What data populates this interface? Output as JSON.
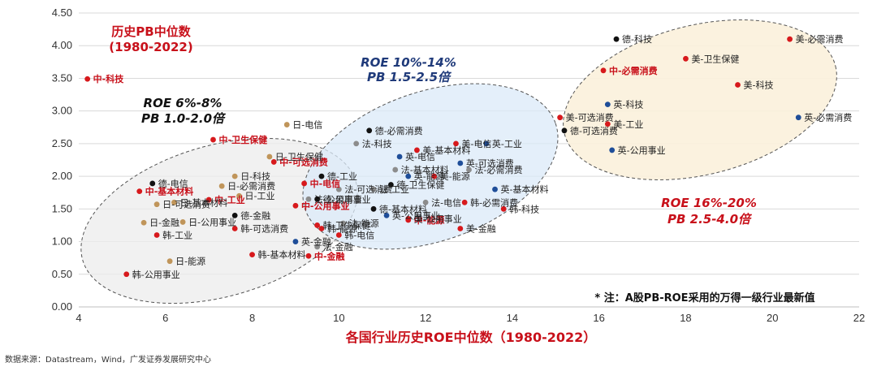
{
  "chart_data": {
    "type": "scatter",
    "title": "",
    "xlabel": "各国行业历史ROE中位数（1980-2022）",
    "ylabel": "",
    "xlim": [
      4,
      22
    ],
    "ylim": [
      0,
      4.5
    ],
    "x_ticks": [
      "4",
      "6",
      "8",
      "10",
      "12",
      "14",
      "16",
      "18",
      "20",
      "22"
    ],
    "y_ticks": [
      "0.00",
      "0.50",
      "1.00",
      "1.50",
      "2.00",
      "2.50",
      "3.00",
      "3.50",
      "4.00",
      "4.50"
    ],
    "grid": true,
    "annotations": {
      "hist_pb_line1": "历史PB中位数",
      "hist_pb_line2": "(1980-2022)",
      "roe_low_line1": "ROE  6%-8%",
      "roe_low_line2": "PB  1.0-2.0倍",
      "roe_mid_line1": "ROE  10%-14%",
      "roe_mid_line2": "PB  1.5-2.5倍",
      "roe_high_line1": "ROE  16%-20%",
      "roe_high_line2": "PB  2.5-4.0倍",
      "note": "* 注：A股PB-ROE采用的万得一级行业最新值"
    },
    "colors": {
      "china": "#d7191c",
      "us": "#d7191c",
      "uk": "#1f4e99",
      "germany": "#111111",
      "france": "#8c8c8c",
      "japan": "#c0955a",
      "korea": "#d7191c",
      "label_highlight": "#c8101a",
      "annotation_dark_blue": "#1f3a7a",
      "annotation_red": "#c8101a"
    },
    "points": [
      {
        "label": "中-科技",
        "x": 4.2,
        "y": 3.49,
        "color": "#d7191c",
        "highlight": true
      },
      {
        "label": "中-卫生保健",
        "x": 7.1,
        "y": 2.56,
        "color": "#d7191c",
        "highlight": true
      },
      {
        "label": "中-可选消费",
        "x": 8.5,
        "y": 2.22,
        "color": "#d7191c",
        "highlight": true
      },
      {
        "label": "中-电信",
        "x": 9.2,
        "y": 1.89,
        "color": "#d7191c",
        "highlight": true
      },
      {
        "label": "中-基本材料",
        "x": 5.4,
        "y": 1.77,
        "color": "#d7191c",
        "highlight": true
      },
      {
        "label": "中-工业",
        "x": 7.0,
        "y": 1.64,
        "color": "#d7191c",
        "highlight": true
      },
      {
        "label": "中-公用事业",
        "x": 9.0,
        "y": 1.55,
        "color": "#d7191c",
        "highlight": true
      },
      {
        "label": "中-能源",
        "x": 11.6,
        "y": 1.33,
        "color": "#d7191c",
        "highlight": true
      },
      {
        "label": "中-金融",
        "x": 9.3,
        "y": 0.78,
        "color": "#d7191c",
        "highlight": true
      },
      {
        "label": "中-必需消费",
        "x": 16.1,
        "y": 3.62,
        "color": "#d7191c",
        "highlight": true
      },
      {
        "label": "日-电信",
        "x": 8.8,
        "y": 2.79,
        "color": "#c0955a",
        "highlight": false
      },
      {
        "label": "日-卫生保健",
        "x": 8.4,
        "y": 2.3,
        "color": "#c0955a",
        "highlight": false
      },
      {
        "label": "日-科技",
        "x": 7.6,
        "y": 2.0,
        "color": "#c0955a",
        "highlight": false
      },
      {
        "label": "日-必需消费",
        "x": 7.3,
        "y": 1.85,
        "color": "#c0955a",
        "highlight": false
      },
      {
        "label": "日-工业",
        "x": 7.7,
        "y": 1.7,
        "color": "#c0955a",
        "highlight": false
      },
      {
        "label": "日-基本材料",
        "x": 6.2,
        "y": 1.6,
        "color": "#c0955a",
        "highlight": false
      },
      {
        "label": "日-可选消费",
        "x": 5.8,
        "y": 1.57,
        "color": "#c0955a",
        "highlight": false
      },
      {
        "label": "日-公用事业",
        "x": 6.4,
        "y": 1.3,
        "color": "#c0955a",
        "highlight": false
      },
      {
        "label": "日-金融",
        "x": 5.5,
        "y": 1.29,
        "color": "#c0955a",
        "highlight": false
      },
      {
        "label": "日-能源",
        "x": 6.1,
        "y": 0.7,
        "color": "#c0955a",
        "highlight": false
      },
      {
        "label": "德-电信",
        "x": 5.7,
        "y": 1.89,
        "color": "#111111",
        "highlight": false
      },
      {
        "label": "德-金融",
        "x": 7.6,
        "y": 1.4,
        "color": "#111111",
        "highlight": false
      },
      {
        "label": "德-公用事业",
        "x": 9.5,
        "y": 1.65,
        "color": "#111111",
        "highlight": false
      },
      {
        "label": "德-工业",
        "x": 9.6,
        "y": 2.0,
        "color": "#111111",
        "highlight": false
      },
      {
        "label": "德-必需消费",
        "x": 10.7,
        "y": 2.7,
        "color": "#111111",
        "highlight": false
      },
      {
        "label": "德-卫生保健",
        "x": 11.2,
        "y": 1.87,
        "color": "#111111",
        "highlight": false
      },
      {
        "label": "德-基本材料",
        "x": 10.8,
        "y": 1.5,
        "color": "#111111",
        "highlight": false
      },
      {
        "label": "德-可选消费",
        "x": 15.2,
        "y": 2.7,
        "color": "#111111",
        "highlight": false
      },
      {
        "label": "德-科技",
        "x": 16.4,
        "y": 4.1,
        "color": "#111111",
        "highlight": false
      },
      {
        "label": "法-科技",
        "x": 10.4,
        "y": 2.5,
        "color": "#8c8c8c",
        "highlight": false
      },
      {
        "label": "法-可选消费",
        "x": 10.0,
        "y": 1.8,
        "color": "#8c8c8c",
        "highlight": false
      },
      {
        "label": "法-基本材料",
        "x": 11.3,
        "y": 2.1,
        "color": "#8c8c8c",
        "highlight": false
      },
      {
        "label": "法-工业",
        "x": 10.8,
        "y": 1.8,
        "color": "#8c8c8c",
        "highlight": false
      },
      {
        "label": "法-能源",
        "x": 10.1,
        "y": 1.28,
        "color": "#8c8c8c",
        "highlight": false
      },
      {
        "label": "法-公用事业",
        "x": 9.3,
        "y": 1.65,
        "color": "#8c8c8c",
        "highlight": false
      },
      {
        "label": "法-电信",
        "x": 12.0,
        "y": 1.6,
        "color": "#8c8c8c",
        "highlight": false
      },
      {
        "label": "法-金融",
        "x": 9.5,
        "y": 0.92,
        "color": "#8c8c8c",
        "highlight": false
      },
      {
        "label": "法-必需消费",
        "x": 13.0,
        "y": 2.1,
        "color": "#8c8c8c",
        "highlight": false
      },
      {
        "label": "英-电信",
        "x": 11.4,
        "y": 2.3,
        "color": "#1f4e99",
        "highlight": false
      },
      {
        "label": "英-能源",
        "x": 11.6,
        "y": 2.0,
        "color": "#1f4e99",
        "highlight": false
      },
      {
        "label": "英-可选消费",
        "x": 12.8,
        "y": 2.2,
        "color": "#1f4e99",
        "highlight": false
      },
      {
        "label": "英-工业",
        "x": 13.4,
        "y": 2.5,
        "color": "#1f4e99",
        "highlight": false
      },
      {
        "label": "英-基本材料",
        "x": 13.6,
        "y": 1.8,
        "color": "#1f4e99",
        "highlight": false
      },
      {
        "label": "英-公用事业",
        "x": 11.1,
        "y": 1.4,
        "color": "#1f4e99",
        "highlight": false
      },
      {
        "label": "英-金融",
        "x": 9.0,
        "y": 1.0,
        "color": "#1f4e99",
        "highlight": false
      },
      {
        "label": "英-科技",
        "x": 16.2,
        "y": 3.1,
        "color": "#1f4e99",
        "highlight": false
      },
      {
        "label": "英-公用事业",
        "x": 16.3,
        "y": 2.4,
        "color": "#1f4e99",
        "highlight": false
      },
      {
        "label": "英-必需消费",
        "x": 20.6,
        "y": 2.9,
        "color": "#1f4e99",
        "highlight": false
      },
      {
        "label": "美-电信",
        "x": 12.7,
        "y": 2.5,
        "color": "#d7191c",
        "highlight": false
      },
      {
        "label": "美-基本材料",
        "x": 11.8,
        "y": 2.4,
        "color": "#d7191c",
        "highlight": false
      },
      {
        "label": "美-能源",
        "x": 12.2,
        "y": 2.0,
        "color": "#d7191c",
        "highlight": false
      },
      {
        "label": "美-公用事业",
        "x": 11.6,
        "y": 1.35,
        "color": "#d7191c",
        "highlight": false
      },
      {
        "label": "美-金融",
        "x": 12.8,
        "y": 1.2,
        "color": "#d7191c",
        "highlight": false
      },
      {
        "label": "美-可选消费",
        "x": 15.1,
        "y": 2.9,
        "color": "#d7191c",
        "highlight": false
      },
      {
        "label": "美-工业",
        "x": 16.2,
        "y": 2.8,
        "color": "#d7191c",
        "highlight": false
      },
      {
        "label": "美-卫生保健",
        "x": 18.0,
        "y": 3.8,
        "color": "#d7191c",
        "highlight": false
      },
      {
        "label": "美-科技",
        "x": 19.2,
        "y": 3.4,
        "color": "#d7191c",
        "highlight": false
      },
      {
        "label": "美-必需消费",
        "x": 20.4,
        "y": 4.1,
        "color": "#d7191c",
        "highlight": false
      },
      {
        "label": "韩-必需消费",
        "x": 12.9,
        "y": 1.6,
        "color": "#d7191c",
        "highlight": false
      },
      {
        "label": "韩-科技",
        "x": 13.8,
        "y": 1.5,
        "color": "#d7191c",
        "highlight": false
      },
      {
        "label": "韩-工业",
        "x": 5.8,
        "y": 1.1,
        "color": "#d7191c",
        "highlight": false
      },
      {
        "label": "韩-可选消费",
        "x": 7.6,
        "y": 1.2,
        "color": "#d7191c",
        "highlight": false
      },
      {
        "label": "韩-卫生保健",
        "x": 9.5,
        "y": 1.25,
        "color": "#d7191c",
        "highlight": false
      },
      {
        "label": "韩-能源",
        "x": 9.6,
        "y": 1.2,
        "color": "#d7191c",
        "highlight": false
      },
      {
        "label": "韩-电信",
        "x": 10.0,
        "y": 1.1,
        "color": "#d7191c",
        "highlight": false
      },
      {
        "label": "韩-基本材料",
        "x": 8.0,
        "y": 0.8,
        "color": "#d7191c",
        "highlight": false
      },
      {
        "label": "韩-公用事业",
        "x": 5.1,
        "y": 0.5,
        "color": "#d7191c",
        "highlight": false
      }
    ]
  },
  "source": "数据来源：Datastream，Wind，广发证券发展研究中心"
}
